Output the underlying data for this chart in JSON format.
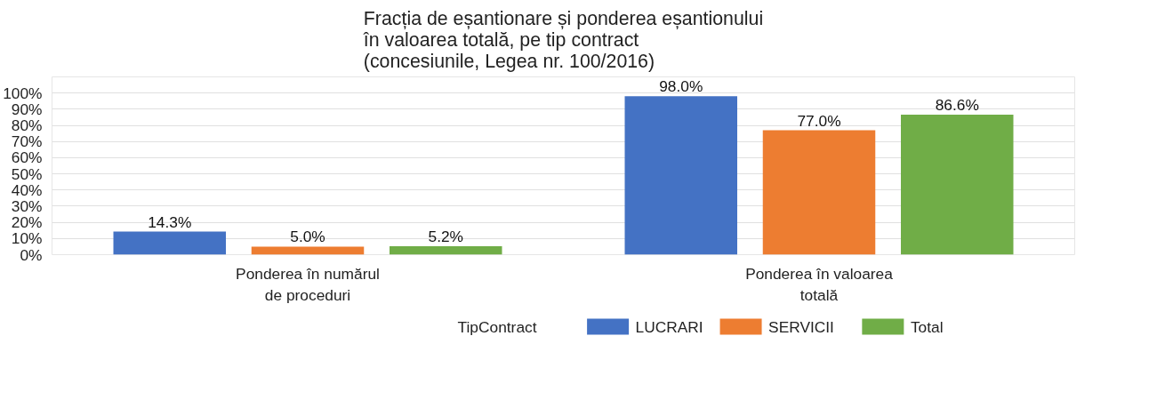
{
  "chart_data": {
    "type": "bar",
    "title": "Fracția de eșantionare și ponderea eșantionului\nîn valoarea totală, pe tip contract\n(concesiunile, Legea nr. 100/2016)",
    "categories": [
      "Ponderea în numărul\nde proceduri",
      "Ponderea în valoarea\ntotală"
    ],
    "series": [
      {
        "name": "LUCRARI",
        "color": "#4472c4",
        "values": [
          14.3,
          98.0
        ],
        "value_labels": [
          "14.3%",
          "98.0%"
        ]
      },
      {
        "name": "SERVICII",
        "color": "#ed7d31",
        "values": [
          5.0,
          77.0
        ],
        "value_labels": [
          "5.0%",
          "77.0%"
        ]
      },
      {
        "name": "Total",
        "color": "#70ad47",
        "values": [
          5.2,
          86.6
        ],
        "value_labels": [
          "5.2%",
          "86.6%"
        ]
      }
    ],
    "ylim": [
      0,
      110
    ],
    "yticks": [
      {
        "value": 0,
        "label": "0%"
      },
      {
        "value": 10,
        "label": "10%"
      },
      {
        "value": 20,
        "label": "20%"
      },
      {
        "value": 30,
        "label": "30%"
      },
      {
        "value": 40,
        "label": "40%"
      },
      {
        "value": 50,
        "label": "50%"
      },
      {
        "value": 60,
        "label": "60%"
      },
      {
        "value": 70,
        "label": "70%"
      },
      {
        "value": 80,
        "label": "80%"
      },
      {
        "value": 90,
        "label": "90%"
      },
      {
        "value": 100,
        "label": "100%"
      }
    ],
    "legend_title": "TipContract",
    "legend": "bottom",
    "grid": "y"
  }
}
